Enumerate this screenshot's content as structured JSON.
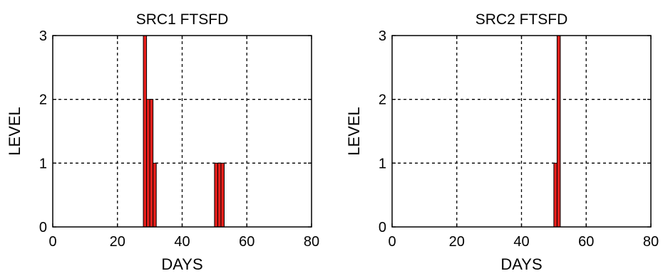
{
  "chart_data": [
    {
      "type": "bar",
      "title": "SRC1 FTSFD",
      "xlabel": "DAYS",
      "ylabel": "LEVEL",
      "xlim": [
        0,
        80
      ],
      "ylim": [
        0,
        3
      ],
      "xticks": [
        "0",
        "20",
        "40",
        "60",
        "80"
      ],
      "yticks": [
        "0",
        "1",
        "2",
        "3"
      ],
      "grid": true,
      "bar_color": "#e8201c",
      "x": [
        28,
        29,
        30,
        31,
        50,
        51,
        52
      ],
      "values": [
        3,
        2,
        2,
        1,
        1,
        1,
        1
      ]
    },
    {
      "type": "bar",
      "title": "SRC2 FTSFD",
      "xlabel": "DAYS",
      "ylabel": "LEVEL",
      "xlim": [
        0,
        80
      ],
      "ylim": [
        0,
        3
      ],
      "xticks": [
        "0",
        "20",
        "40",
        "60",
        "80"
      ],
      "yticks": [
        "0",
        "1",
        "2",
        "3"
      ],
      "grid": true,
      "bar_color": "#e8201c",
      "x": [
        50,
        51
      ],
      "values": [
        1,
        3
      ]
    }
  ]
}
